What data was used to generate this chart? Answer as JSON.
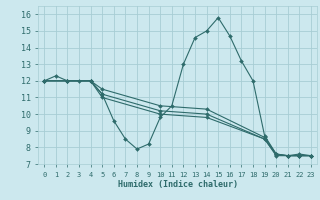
{
  "xlabel": "Humidex (Indice chaleur)",
  "xlim": [
    -0.5,
    23.5
  ],
  "ylim": [
    7,
    16.5
  ],
  "yticks": [
    7,
    8,
    9,
    10,
    11,
    12,
    13,
    14,
    15,
    16
  ],
  "xticks": [
    0,
    1,
    2,
    3,
    4,
    5,
    6,
    7,
    8,
    9,
    10,
    11,
    12,
    13,
    14,
    15,
    16,
    17,
    18,
    19,
    20,
    21,
    22,
    23
  ],
  "bg_color": "#cce8ee",
  "grid_color": "#a8cdd4",
  "line_color": "#2e6b6b",
  "lines": [
    {
      "x": [
        0,
        1,
        2,
        3,
        4,
        5,
        6,
        7,
        8,
        9,
        10,
        11,
        12,
        13,
        14,
        15,
        16,
        17,
        18,
        19,
        20,
        21,
        22,
        23
      ],
      "y": [
        12,
        12.3,
        12,
        12,
        12,
        11.2,
        9.6,
        8.5,
        7.9,
        8.2,
        9.8,
        10.5,
        13.0,
        14.6,
        15.0,
        15.8,
        14.7,
        13.2,
        12.0,
        8.7,
        7.6,
        7.5,
        7.6,
        7.5
      ]
    },
    {
      "x": [
        0,
        2,
        4,
        5,
        10,
        14,
        19,
        20,
        21,
        22,
        23
      ],
      "y": [
        12,
        12,
        12,
        11.5,
        10.5,
        10.3,
        8.6,
        7.6,
        7.5,
        7.5,
        7.5
      ]
    },
    {
      "x": [
        0,
        2,
        4,
        5,
        10,
        14,
        19,
        20,
        21,
        22,
        23
      ],
      "y": [
        12,
        12,
        12,
        11.2,
        10.2,
        10.0,
        8.5,
        7.55,
        7.5,
        7.5,
        7.5
      ]
    },
    {
      "x": [
        0,
        2,
        4,
        5,
        10,
        14,
        19,
        20,
        21,
        22,
        23
      ],
      "y": [
        12,
        12,
        12,
        11.0,
        10.0,
        9.8,
        8.5,
        7.5,
        7.5,
        7.5,
        7.5
      ]
    }
  ]
}
